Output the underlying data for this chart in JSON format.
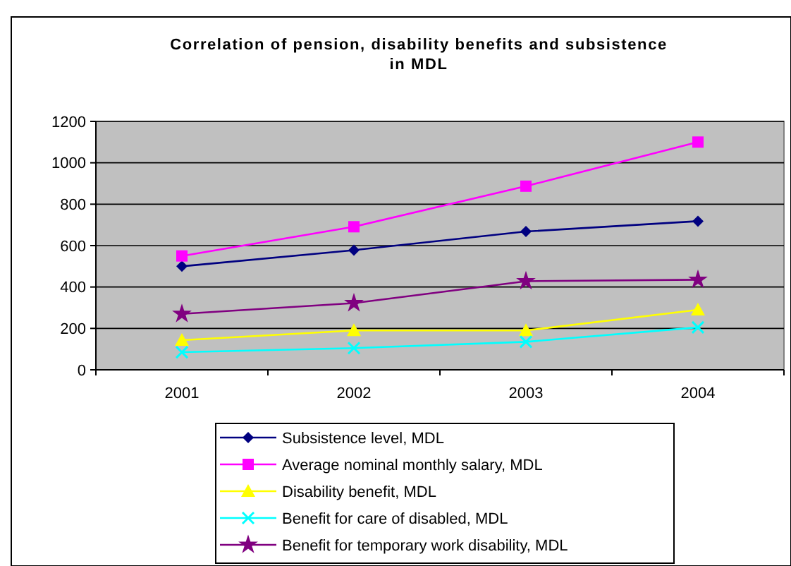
{
  "chart_data": {
    "type": "line",
    "title": "Correlation of pension, disability benefits and subsistence in MDL",
    "categories": [
      "2001",
      "2002",
      "2003",
      "2004"
    ],
    "series": [
      {
        "name": "Subsistence level, MDL",
        "color": "#000080",
        "marker": "diamond",
        "values": [
          500,
          578,
          668,
          718
        ]
      },
      {
        "name": "Average nominal monthly salary, MDL",
        "color": "#ff00ff",
        "marker": "square",
        "values": [
          550,
          691,
          887,
          1100
        ]
      },
      {
        "name": "Disability benefit, MDL",
        "color": "#ffff00",
        "marker": "triangle",
        "values": [
          143,
          190,
          190,
          290
        ]
      },
      {
        "name": "Benefit for care of disabled, MDL",
        "color": "#00ffff",
        "marker": "cross",
        "values": [
          85,
          105,
          135,
          205
        ]
      },
      {
        "name": "Benefit for temporary work disability, MDL",
        "color": "#800080",
        "marker": "star",
        "values": [
          270,
          322,
          428,
          435
        ]
      }
    ],
    "ylim": [
      0,
      1200
    ],
    "yticks": [
      0,
      200,
      400,
      600,
      800,
      1000,
      1200
    ],
    "grid": "y",
    "legend": "bottom"
  }
}
